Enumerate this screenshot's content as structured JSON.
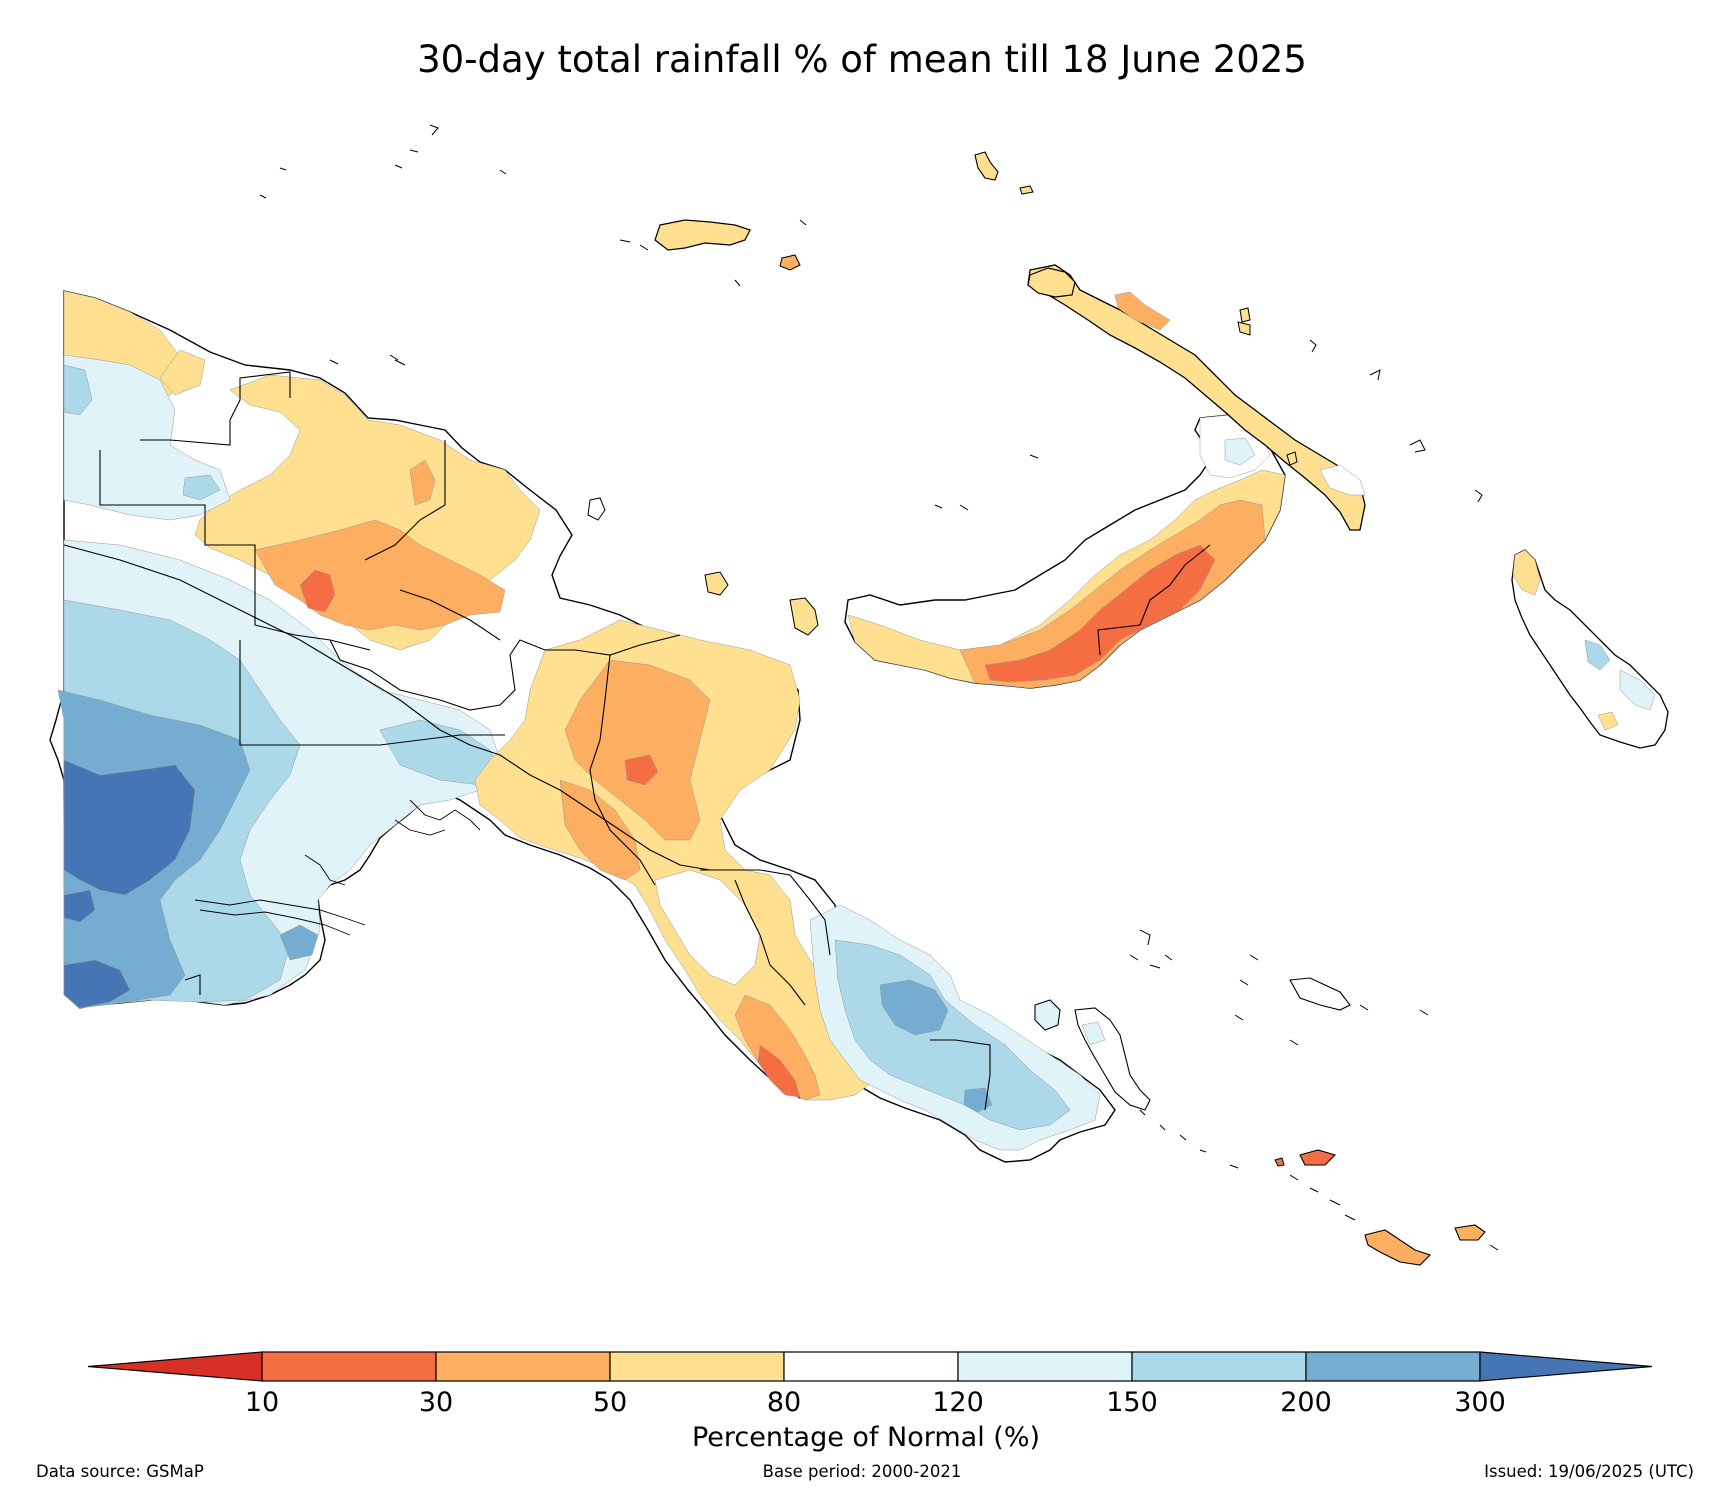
{
  "title": "30-day total rainfall % of mean till 18 June 2025",
  "colorbar": {
    "label": "Percentage of Normal (%)",
    "ticks": [
      "10",
      "30",
      "50",
      "80",
      "120",
      "150",
      "200",
      "300"
    ],
    "colors": {
      "below_10": "#d73027",
      "10_30": "#f46d43",
      "30_50": "#fdae61",
      "50_80": "#fee090",
      "80_120": "#ffffff",
      "120_150": "#e0f3f8",
      "150_200": "#abd9e9",
      "200_300": "#74add1",
      "above_300": "#4575b4"
    }
  },
  "footer": {
    "source": "Data source: GSMaP",
    "base_period": "Base period: 2000-2021",
    "issued": "Issued: 19/06/2025 (UTC)"
  }
}
